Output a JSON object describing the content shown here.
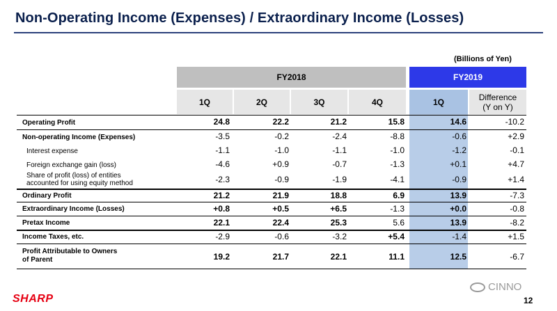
{
  "title": "Non-Operating Income (Expenses) / Extraordinary Income (Losses)",
  "units": "(Billions of Yen)",
  "groups": {
    "fy2018": "FY2018",
    "fy2019": "FY2019"
  },
  "columns": {
    "q1": "1Q",
    "q2": "2Q",
    "q3": "3Q",
    "q4": "4Q",
    "q1_2019": "1Q",
    "diff_line1": "Difference",
    "diff_line2": "(Y on Y)"
  },
  "rows": [
    {
      "label": "Operating Profit",
      "values": [
        "24.8",
        "22.2",
        "21.2",
        "15.8",
        "14.6",
        "-10.2"
      ]
    },
    {
      "label": "Non-operating Income (Expenses)",
      "values": [
        "-3.5",
        "-0.2",
        "-2.4",
        "-8.8",
        "-0.6",
        "+2.9"
      ]
    },
    {
      "label": "Interest expense",
      "values": [
        "-1.1",
        "-1.0",
        "-1.1",
        "-1.0",
        "-1.2",
        "-0.1"
      ]
    },
    {
      "label": "Foreign exchange gain (loss)",
      "values": [
        "-4.6",
        "+0.9",
        "-0.7",
        "-1.3",
        "+0.1",
        "+4.7"
      ]
    },
    {
      "label_line1": "Share of profit (loss) of entities",
      "label_line2": "accounted for using equity method",
      "values": [
        "-2.3",
        "-0.9",
        "-1.9",
        "-4.1",
        "-0.9",
        "+1.4"
      ]
    },
    {
      "label": "Ordinary Profit",
      "values": [
        "21.2",
        "21.9",
        "18.8",
        "6.9",
        "13.9",
        "-7.3"
      ]
    },
    {
      "label": "Extraordinary Income (Losses)",
      "values": [
        "+0.8",
        "+0.5",
        "+6.5",
        "-1.3",
        "+0.0",
        "-0.8"
      ]
    },
    {
      "label": "Pretax Income",
      "values": [
        "22.1",
        "22.4",
        "25.3",
        "5.6",
        "13.9",
        "-8.2"
      ]
    },
    {
      "label": "Income Taxes, etc.",
      "values": [
        "-2.9",
        "-0.6",
        "-3.2",
        "+5.4",
        "-1.4",
        "+1.5"
      ]
    },
    {
      "label_line1": "Profit Attributable to Owners",
      "label_line2": "of Parent",
      "values": [
        "19.2",
        "21.7",
        "22.1",
        "11.1",
        "12.5",
        "-6.7"
      ]
    }
  ],
  "footer": {
    "logo": "SHARP",
    "watermark": "CINNO",
    "page": "12"
  },
  "colors": {
    "title": "#0a1f4c",
    "fy2019_header": "#2d39e8",
    "fy2019_column": "#b8cde8",
    "logo": "#e60012"
  }
}
